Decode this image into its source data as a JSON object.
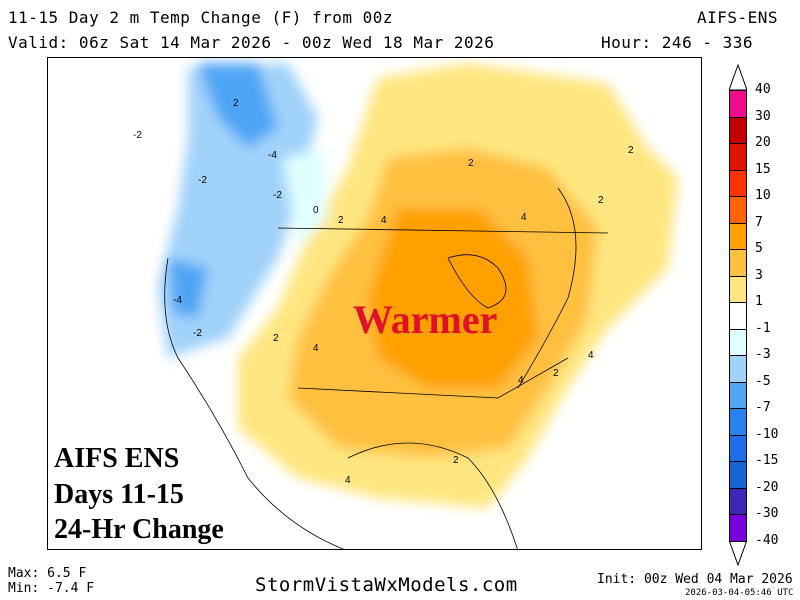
{
  "header": {
    "title": "11-15 Day 2 m Temp Change (F) from 00z",
    "model": "AIFS-ENS",
    "valid": "Valid: 06z Sat 14 Mar 2026 - 00z Wed 18 Mar 2026",
    "hours": "Hour: 246 - 336"
  },
  "map": {
    "annotation": "Warmer",
    "overlay_lines": [
      "AIFS ENS",
      "Days 11-15",
      "24-Hr Change"
    ],
    "contour_labels": [
      "-2",
      "-4",
      "-2",
      "-2",
      "0",
      "2",
      "4",
      "2",
      "4",
      "2",
      "2",
      "4",
      "2",
      "4",
      "2",
      "-4",
      "-2",
      "2",
      "4",
      "2",
      "4"
    ]
  },
  "colorbar": {
    "labels": [
      "40",
      "30",
      "20",
      "15",
      "10",
      "7",
      "5",
      "3",
      "1",
      "-1",
      "-3",
      "-5",
      "-7",
      "-10",
      "-15",
      "-20",
      "-30",
      "-40"
    ],
    "colors": [
      "#f00c8c",
      "#c00000",
      "#e01400",
      "#ff3200",
      "#ff6400",
      "#ffa000",
      "#ffc040",
      "#ffe680",
      "#ffffff",
      "#e0ffff",
      "#a0d2fa",
      "#50a5f5",
      "#2882f0",
      "#1e6eeb",
      "#1464d2",
      "#3c28b4",
      "#7800dc"
    ]
  },
  "footer": {
    "max": "Max: 6.5 F",
    "min": "Min: -7.4 F",
    "site": "StormVistaWxModels.com",
    "init": "Init: 00z Wed 04 Mar 2026",
    "stamp": "2026-03-04-05:46 UTC"
  }
}
